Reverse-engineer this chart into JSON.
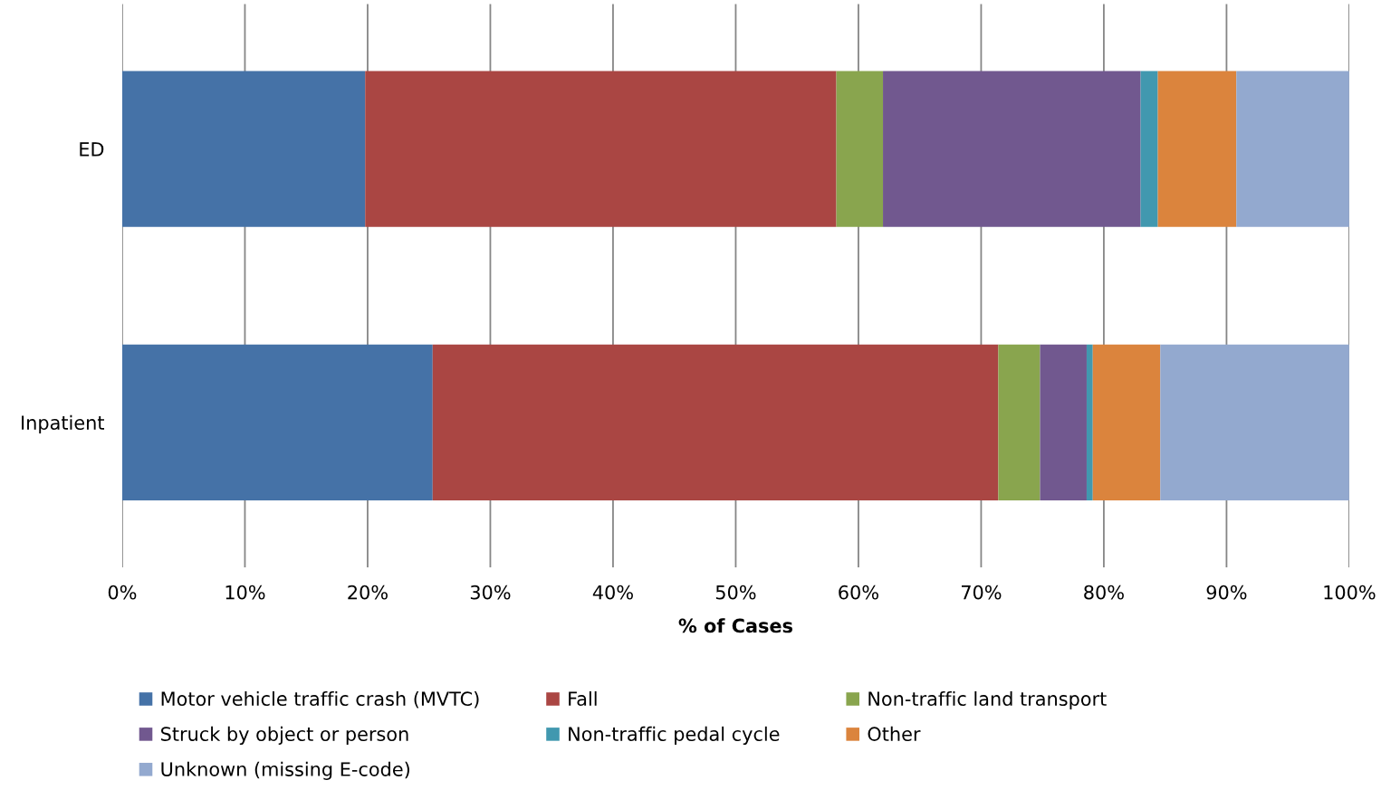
{
  "chart_data": {
    "type": "bar",
    "orientation": "horizontal",
    "stacked": true,
    "categories": [
      "ED",
      "Inpatient"
    ],
    "xlabel": "% of Cases",
    "xlim": [
      0,
      100
    ],
    "xticks": [
      {
        "value": 0,
        "label": "0%"
      },
      {
        "value": 10,
        "label": "10%"
      },
      {
        "value": 20,
        "label": "20%"
      },
      {
        "value": 30,
        "label": "30%"
      },
      {
        "value": 40,
        "label": "40%"
      },
      {
        "value": 50,
        "label": "50%"
      },
      {
        "value": 60,
        "label": "60%"
      },
      {
        "value": 70,
        "label": "70%"
      },
      {
        "value": 80,
        "label": "80%"
      },
      {
        "value": 90,
        "label": "90%"
      },
      {
        "value": 100,
        "label": "100%"
      }
    ],
    "grid": "x",
    "legend": "bottom",
    "series": [
      {
        "name": "Motor vehicle traffic crash (MVTC)",
        "color": "#4572a7",
        "values": [
          19.8,
          25.3
        ]
      },
      {
        "name": "Fall",
        "color": "#aa4643",
        "values": [
          38.4,
          46.1
        ]
      },
      {
        "name": "Non-traffic land transport",
        "color": "#89a54e",
        "values": [
          3.8,
          3.4
        ]
      },
      {
        "name": "Struck by object or person",
        "color": "#71588f",
        "values": [
          21.0,
          3.8
        ]
      },
      {
        "name": "Non-traffic pedal cycle",
        "color": "#4198af",
        "values": [
          1.4,
          0.5
        ]
      },
      {
        "name": "Other",
        "color": "#db843d",
        "values": [
          6.4,
          5.5
        ]
      },
      {
        "name": "Unknown (missing E-code)",
        "color": "#93a9cf",
        "values": [
          9.2,
          15.4
        ]
      }
    ]
  }
}
